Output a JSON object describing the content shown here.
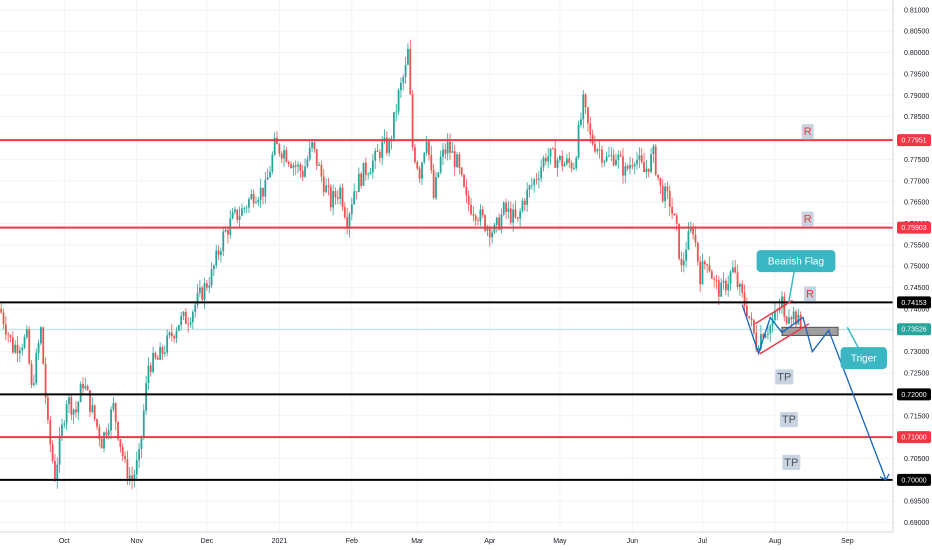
{
  "chart_data": {
    "type": "candlestick",
    "y_ticks": [
      "0.81000",
      "0.80500",
      "0.80000",
      "0.79500",
      "0.79000",
      "0.78500",
      "0.78000",
      "0.77500",
      "0.77000",
      "0.76500",
      "0.76000",
      "0.75500",
      "0.75000",
      "0.74500",
      "0.74000",
      "0.73500",
      "0.73000",
      "0.72500",
      "0.72000",
      "0.71500",
      "0.71000",
      "0.70500",
      "0.70000",
      "0.69500",
      "0.69000"
    ],
    "x_ticks": [
      {
        "label": "Oct",
        "x": 4
      },
      {
        "label": "Nov",
        "x": 35
      },
      {
        "label": "Dec",
        "x": 65
      },
      {
        "label": "2021",
        "x": 96
      },
      {
        "label": "Feb",
        "x": 127
      },
      {
        "label": "Mar",
        "x": 155
      },
      {
        "label": "Apr",
        "x": 186
      },
      {
        "label": "May",
        "x": 216
      },
      {
        "label": "Jun",
        "x": 247
      },
      {
        "label": "Jul",
        "x": 277
      },
      {
        "label": "Aug",
        "x": 308
      },
      {
        "label": "Sep",
        "x": 339
      }
    ],
    "ylim": [
      0.6878,
      0.8123
    ],
    "xlim": [
      -23.5,
      358.5
    ],
    "current_price": {
      "label": "0.73526",
      "value": 0.73526,
      "color": "#26a69a"
    },
    "levels": [
      {
        "value": 0.77951,
        "label": "0.77951",
        "color": "#f23645",
        "marker": "R",
        "marker_x": 322
      },
      {
        "value": 0.75903,
        "label": "0.75903",
        "color": "#f23645",
        "marker": "R",
        "marker_x": 322
      },
      {
        "value": 0.74153,
        "label": "0.74153",
        "color": "#000000",
        "marker": "R",
        "marker_x": 323
      },
      {
        "value": 0.72,
        "label": "0.72000",
        "color": "#000000",
        "marker": "TP",
        "marker_x": 312
      },
      {
        "value": 0.71,
        "label": "0.71000",
        "color": "#f23645",
        "marker": "TP",
        "marker_x": 314
      },
      {
        "value": 0.7,
        "label": "0.70000",
        "color": "#000000",
        "marker": "TP",
        "marker_x": 315
      }
    ],
    "anchors": [
      [
        -23.5,
        0.74
      ],
      [
        -18,
        0.731
      ],
      [
        -12,
        0.733
      ],
      [
        -10,
        0.721
      ],
      [
        -6,
        0.735
      ],
      [
        -3,
        0.712
      ],
      [
        0,
        0.701
      ],
      [
        5,
        0.719
      ],
      [
        9,
        0.716
      ],
      [
        12,
        0.723
      ],
      [
        16,
        0.716
      ],
      [
        20,
        0.709
      ],
      [
        25,
        0.717
      ],
      [
        30,
        0.703
      ],
      [
        33,
        0.7
      ],
      [
        36,
        0.705
      ],
      [
        40,
        0.727
      ],
      [
        44,
        0.728
      ],
      [
        49,
        0.733
      ],
      [
        53,
        0.737
      ],
      [
        57,
        0.738
      ],
      [
        61,
        0.742
      ],
      [
        67,
        0.748
      ],
      [
        72,
        0.757
      ],
      [
        76,
        0.761
      ],
      [
        80,
        0.763
      ],
      [
        85,
        0.767
      ],
      [
        90,
        0.768
      ],
      [
        94,
        0.778
      ],
      [
        98,
        0.777
      ],
      [
        102,
        0.774
      ],
      [
        106,
        0.772
      ],
      [
        110,
        0.778
      ],
      [
        114,
        0.771
      ],
      [
        118,
        0.765
      ],
      [
        122,
        0.768
      ],
      [
        125,
        0.761
      ],
      [
        128,
        0.768
      ],
      [
        132,
        0.772
      ],
      [
        137,
        0.775
      ],
      [
        140,
        0.778
      ],
      [
        143,
        0.778
      ],
      [
        147,
        0.79
      ],
      [
        150,
        0.796
      ],
      [
        151,
        0.8
      ],
      [
        153,
        0.778
      ],
      [
        156,
        0.772
      ],
      [
        159,
        0.781
      ],
      [
        162,
        0.766
      ],
      [
        165,
        0.775
      ],
      [
        168,
        0.778
      ],
      [
        172,
        0.774
      ],
      [
        176,
        0.765
      ],
      [
        180,
        0.763
      ],
      [
        184,
        0.76
      ],
      [
        188,
        0.758
      ],
      [
        192,
        0.763
      ],
      [
        195,
        0.762
      ],
      [
        198,
        0.76
      ],
      [
        200,
        0.765
      ],
      [
        205,
        0.77
      ],
      [
        210,
        0.776
      ],
      [
        215,
        0.775
      ],
      [
        218,
        0.774
      ],
      [
        222,
        0.774
      ],
      [
        226,
        0.788
      ],
      [
        229,
        0.78
      ],
      [
        232,
        0.778
      ],
      [
        236,
        0.775
      ],
      [
        240,
        0.776
      ],
      [
        244,
        0.772
      ],
      [
        248,
        0.776
      ],
      [
        252,
        0.772
      ],
      [
        256,
        0.776
      ],
      [
        259,
        0.768
      ],
      [
        263,
        0.765
      ],
      [
        266,
        0.758
      ],
      [
        268,
        0.749
      ],
      [
        270,
        0.755
      ],
      [
        273,
        0.759
      ],
      [
        276,
        0.748
      ],
      [
        279,
        0.752
      ],
      [
        282,
        0.746
      ],
      [
        285,
        0.744
      ],
      [
        288,
        0.747
      ],
      [
        290,
        0.749
      ],
      [
        293,
        0.744
      ],
      [
        296,
        0.74
      ],
      [
        298,
        0.736
      ],
      [
        300,
        0.732
      ],
      [
        303,
        0.735
      ],
      [
        306,
        0.736
      ],
      [
        309,
        0.739
      ],
      [
        311,
        0.742
      ],
      [
        312,
        0.737
      ],
      [
        314,
        0.74
      ],
      [
        317,
        0.738
      ],
      [
        319,
        0.7353
      ]
    ],
    "flag": {
      "upper": [
        [
          299.5,
          0.7365
        ],
        [
          315.5,
          0.742
        ]
      ],
      "lower": [
        [
          301.5,
          0.7295
        ],
        [
          322.5,
          0.7365
        ]
      ]
    },
    "projection": [
      [
        294,
        0.741
      ],
      [
        301,
        0.7296
      ],
      [
        306,
        0.738
      ],
      [
        311,
        0.7345
      ],
      [
        320,
        0.738
      ],
      [
        324,
        0.73
      ],
      [
        331,
        0.735
      ],
      [
        355.5,
        0.7
      ]
    ],
    "trigger_box": {
      "x0": 311,
      "x1": 335,
      "y_top": 0.7357,
      "y_bottom": 0.7338
    },
    "annotations": [
      {
        "text": "Bearish Flag",
        "x": 317,
        "y": 0.7512,
        "pointer_x": 314,
        "pointer_y": 0.7418
      },
      {
        "text": "Triger",
        "x": 346,
        "y": 0.7285,
        "pointer_x": 339,
        "pointer_y": 0.7357
      }
    ]
  },
  "colors": {
    "up": "#26a69a",
    "down": "#ef5350",
    "projection": "#1565c0",
    "grid": "#f0f3fa",
    "annotation_bg": "#3bb7c4",
    "tag_bg": "#c7d3e0"
  }
}
